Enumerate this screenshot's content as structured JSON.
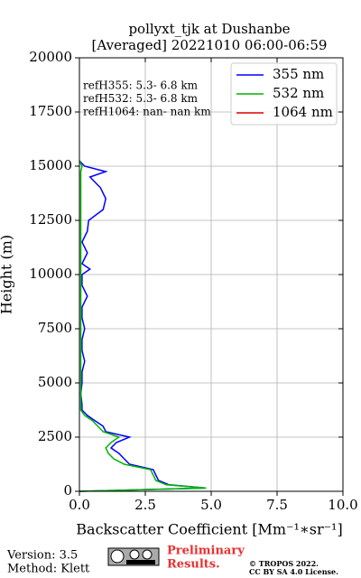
{
  "chart_data": {
    "type": "profile",
    "title": "pollyxt_tjk at Dushanbe",
    "subtitle": "[Averaged] 20221010 06:00-06:59",
    "x_label": "Backscatter Coefficient [Mm⁻¹∗sr⁻¹]",
    "y_label": "Height (m)",
    "y": [
      0,
      150,
      300,
      500,
      750,
      1000,
      1250,
      1500,
      1750,
      2000,
      2250,
      2500,
      2750,
      3000,
      3250,
      3500,
      3750,
      4000,
      4500,
      5000,
      5500,
      6000,
      6500,
      7000,
      7500,
      8000,
      8500,
      9000,
      9500,
      10000,
      10250,
      10500,
      11000,
      11500,
      12000,
      12500,
      13000,
      13500,
      14000,
      14500,
      14750,
      15000,
      15250
    ],
    "series": [
      {
        "name": "355 nm",
        "color": "#0000ff",
        "values": [
          0.0,
          4.8,
          3.4,
          3.0,
          2.9,
          2.8,
          1.9,
          1.7,
          1.5,
          1.2,
          1.4,
          1.9,
          1.0,
          0.9,
          0.6,
          0.3,
          0.1,
          0.1,
          0.05,
          0.1,
          0.1,
          0.2,
          0.1,
          0.1,
          0.2,
          0.1,
          0.1,
          0.3,
          0.1,
          0.1,
          0.4,
          0.1,
          0.3,
          0.1,
          0.3,
          0.35,
          0.9,
          1.0,
          0.8,
          0.4,
          1.0,
          0.2,
          0.0
        ]
      },
      {
        "name": "532 nm",
        "color": "#00b400",
        "values": [
          0.0,
          4.8,
          3.3,
          2.9,
          2.8,
          2.7,
          1.7,
          1.3,
          1.1,
          1.0,
          1.2,
          1.5,
          0.9,
          0.7,
          0.5,
          0.2,
          0.05,
          0.05,
          0.05,
          0.05,
          0.05,
          0.05,
          0.05,
          0.05,
          0.05,
          0.05,
          0.05,
          0.05,
          0.05,
          0.05,
          0.05,
          0.05,
          0.05,
          0.05,
          0.05,
          0.05,
          0.05,
          0.05,
          0.05,
          0.05,
          0.05,
          0.1,
          0.0
        ]
      },
      {
        "name": "1064 nm",
        "color": "#e00000",
        "values": [
          null,
          null,
          null,
          null,
          null,
          null,
          null,
          null,
          null,
          null,
          null,
          null,
          null,
          null,
          null,
          null,
          null,
          null,
          null,
          null,
          null,
          null,
          null,
          null,
          null,
          null,
          null,
          null,
          null,
          null,
          null,
          null,
          null,
          null,
          null,
          null,
          null,
          null,
          null,
          null,
          null,
          null,
          null
        ]
      }
    ],
    "xlim": [
      0,
      10
    ],
    "xticks": [
      {
        "value": 0,
        "label": "0.0"
      },
      2.5,
      {
        "value": 5,
        "label": "5.0"
      },
      7.5,
      {
        "value": 10,
        "label": "10.0"
      }
    ],
    "ylim": [
      0,
      20000
    ],
    "yticks": [
      0,
      2500,
      5000,
      7500,
      10000,
      12500,
      15000,
      17500,
      20000
    ],
    "grid": true,
    "legend": "upper right",
    "annotations": [
      "refH355:  5.3- 6.8 km",
      "refH532:  5.3- 6.8 km",
      "refH1064:  nan- nan km"
    ]
  },
  "footer": {
    "version": "Version: 3.5",
    "method": "Method: Klett",
    "preliminary": [
      "Preliminary",
      "Results."
    ],
    "copyright": [
      "© TROPOS 2022.",
      "CC BY SA 4.0 License."
    ]
  }
}
